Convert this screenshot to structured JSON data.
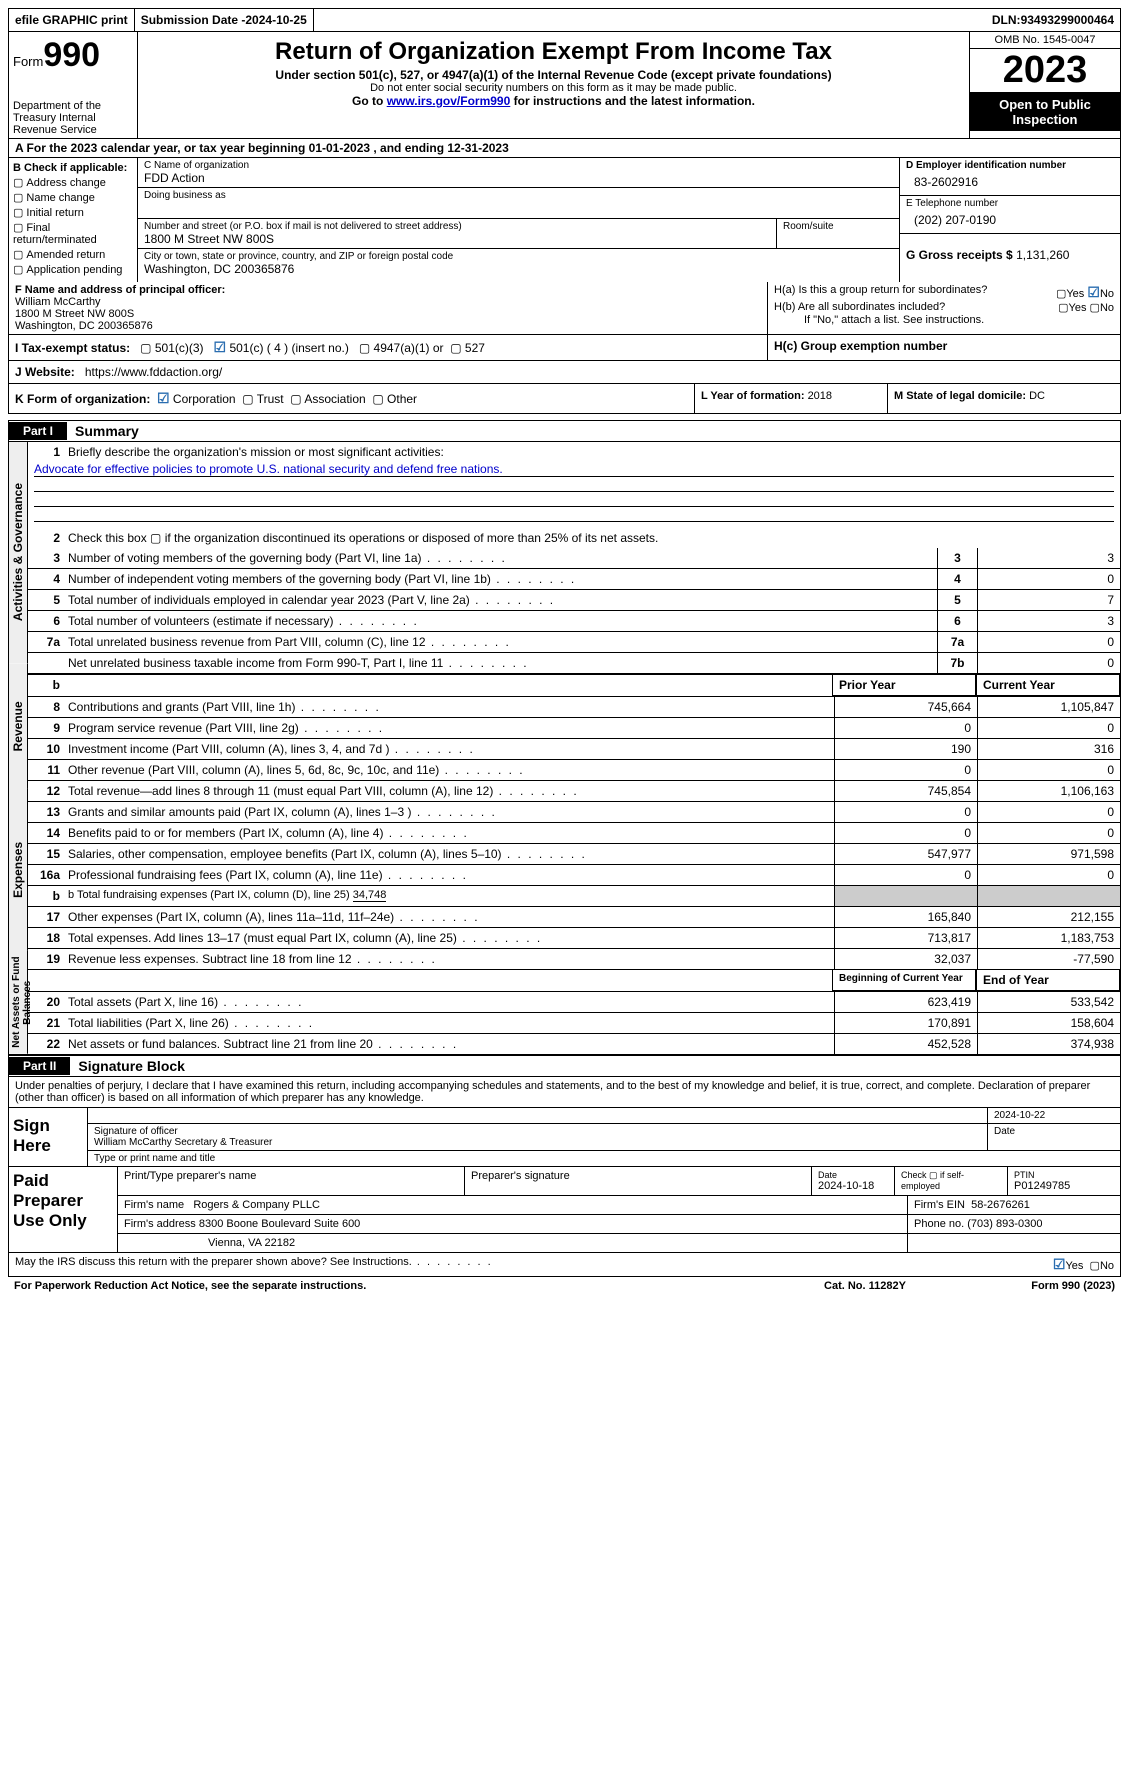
{
  "topbar": {
    "efile": "efile GRAPHIC print",
    "submission_label": "Submission Date - ",
    "submission_date": "2024-10-25",
    "dln_label": "DLN: ",
    "dln": "93493299000464"
  },
  "header": {
    "form_label": "Form",
    "form_num": "990",
    "dept": "Department of the Treasury\nInternal Revenue Service",
    "title": "Return of Organization Exempt From Income Tax",
    "subtitle": "Under section 501(c), 527, or 4947(a)(1) of the Internal Revenue Code (except private foundations)",
    "note1": "Do not enter social security numbers on this form as it may be made public.",
    "note2_pre": "Go to ",
    "note2_link": "www.irs.gov/Form990",
    "note2_post": " for instructions and the latest information.",
    "omb": "OMB No. 1545-0047",
    "year": "2023",
    "inspect": "Open to Public Inspection"
  },
  "rowA": "A  For the 2023 calendar year, or tax year beginning 01-01-2023    , and ending 12-31-2023",
  "colB": {
    "label": "B Check if applicable:",
    "items": [
      "Address change",
      "Name change",
      "Initial return",
      "Final return/terminated",
      "Amended return",
      "Application pending"
    ]
  },
  "colC": {
    "name_lab": "C Name of organization",
    "name": "FDD Action",
    "dba_lab": "Doing business as",
    "addr_lab": "Number and street (or P.O. box if mail is not delivered to street address)",
    "addr": "1800 M Street NW 800S",
    "room_lab": "Room/suite",
    "city_lab": "City or town, state or province, country, and ZIP or foreign postal code",
    "city": "Washington, DC  200365876"
  },
  "colD": {
    "ein_lab": "D Employer identification number",
    "ein": "83-2602916",
    "phone_lab": "E Telephone number",
    "phone": "(202) 207-0190",
    "gross_lab": "G Gross receipts $ ",
    "gross": "1,131,260"
  },
  "rowF": {
    "lab": "F  Name and address of principal officer:",
    "name": "William McCarthy",
    "addr1": "1800 M Street NW 800S",
    "addr2": "Washington, DC  200365876"
  },
  "rowH": {
    "ha": "H(a)  Is this a group return for subordinates?",
    "hb": "H(b)  Are all subordinates included?",
    "hb_note": "If \"No,\" attach a list. See instructions.",
    "hc": "H(c)  Group exemption number",
    "yes": "Yes",
    "no": "No"
  },
  "rowI": {
    "lab": "I   Tax-exempt status:",
    "o1": "501(c)(3)",
    "o2": "501(c) ( 4 ) (insert no.)",
    "o3": "4947(a)(1) or",
    "o4": "527"
  },
  "rowJ": {
    "lab": "J   Website:",
    "val": "https://www.fddaction.org/"
  },
  "rowK": {
    "lab": "K Form of organization:",
    "o1": "Corporation",
    "o2": "Trust",
    "o3": "Association",
    "o4": "Other"
  },
  "rowL": {
    "lab": "L Year of formation: ",
    "val": "2018"
  },
  "rowM": {
    "lab": "M State of legal domicile: ",
    "val": "DC"
  },
  "part1": {
    "label": "Part I",
    "title": "Summary"
  },
  "summary": {
    "vtab1": "Activities & Governance",
    "vtab2": "Revenue",
    "vtab3": "Expenses",
    "vtab4": "Net Assets or Fund Balances",
    "line1_lab": "Briefly describe the organization's mission or most significant activities:",
    "line1_val": "Advocate for effective policies to promote U.S. national security and defend free nations.",
    "line2": "Check this box ▢ if the organization discontinued its operations or disposed of more than 25% of its net assets.",
    "lines_gov": [
      {
        "n": "3",
        "d": "Number of voting members of the governing body (Part VI, line 1a)",
        "col": "3",
        "v": "3"
      },
      {
        "n": "4",
        "d": "Number of independent voting members of the governing body (Part VI, line 1b)",
        "col": "4",
        "v": "0"
      },
      {
        "n": "5",
        "d": "Total number of individuals employed in calendar year 2023 (Part V, line 2a)",
        "col": "5",
        "v": "7"
      },
      {
        "n": "6",
        "d": "Total number of volunteers (estimate if necessary)",
        "col": "6",
        "v": "3"
      },
      {
        "n": "7a",
        "d": "Total unrelated business revenue from Part VIII, column (C), line 12",
        "col": "7a",
        "v": "0"
      },
      {
        "n": "",
        "d": "Net unrelated business taxable income from Form 990-T, Part I, line 11",
        "col": "7b",
        "v": "0"
      }
    ],
    "col_prior": "Prior Year",
    "col_current": "Current Year",
    "lines_rev": [
      {
        "n": "8",
        "d": "Contributions and grants (Part VIII, line 1h)",
        "p": "745,664",
        "c": "1,105,847"
      },
      {
        "n": "9",
        "d": "Program service revenue (Part VIII, line 2g)",
        "p": "0",
        "c": "0"
      },
      {
        "n": "10",
        "d": "Investment income (Part VIII, column (A), lines 3, 4, and 7d )",
        "p": "190",
        "c": "316"
      },
      {
        "n": "11",
        "d": "Other revenue (Part VIII, column (A), lines 5, 6d, 8c, 9c, 10c, and 11e)",
        "p": "0",
        "c": "0"
      },
      {
        "n": "12",
        "d": "Total revenue—add lines 8 through 11 (must equal Part VIII, column (A), line 12)",
        "p": "745,854",
        "c": "1,106,163"
      }
    ],
    "lines_exp": [
      {
        "n": "13",
        "d": "Grants and similar amounts paid (Part IX, column (A), lines 1–3 )",
        "p": "0",
        "c": "0"
      },
      {
        "n": "14",
        "d": "Benefits paid to or for members (Part IX, column (A), line 4)",
        "p": "0",
        "c": "0"
      },
      {
        "n": "15",
        "d": "Salaries, other compensation, employee benefits (Part IX, column (A), lines 5–10)",
        "p": "547,977",
        "c": "971,598"
      },
      {
        "n": "16a",
        "d": "Professional fundraising fees (Part IX, column (A), line 11e)",
        "p": "0",
        "c": "0"
      }
    ],
    "line16b_lab": "b  Total fundraising expenses (Part IX, column (D), line 25) ",
    "line16b_val": "34,748",
    "lines_exp2": [
      {
        "n": "17",
        "d": "Other expenses (Part IX, column (A), lines 11a–11d, 11f–24e)",
        "p": "165,840",
        "c": "212,155"
      },
      {
        "n": "18",
        "d": "Total expenses. Add lines 13–17 (must equal Part IX, column (A), line 25)",
        "p": "713,817",
        "c": "1,183,753"
      },
      {
        "n": "19",
        "d": "Revenue less expenses. Subtract line 18 from line 12",
        "p": "32,037",
        "c": "-77,590"
      }
    ],
    "col_beg": "Beginning of Current Year",
    "col_end": "End of Year",
    "lines_net": [
      {
        "n": "20",
        "d": "Total assets (Part X, line 16)",
        "p": "623,419",
        "c": "533,542"
      },
      {
        "n": "21",
        "d": "Total liabilities (Part X, line 26)",
        "p": "170,891",
        "c": "158,604"
      },
      {
        "n": "22",
        "d": "Net assets or fund balances. Subtract line 21 from line 20",
        "p": "452,528",
        "c": "374,938"
      }
    ]
  },
  "part2": {
    "label": "Part II",
    "title": "Signature Block"
  },
  "sig_decl": "Under penalties of perjury, I declare that I have examined this return, including accompanying schedules and statements, and to the best of my knowledge and belief, it is true, correct, and complete. Declaration of preparer (other than officer) is based on all information of which preparer has any knowledge.",
  "sign": {
    "here": "Sign Here",
    "date": "2024-10-22",
    "sig_lab": "Signature of officer",
    "date_lab": "Date",
    "name": "William McCarthy  Secretary & Treasurer",
    "name_lab": "Type or print name and title"
  },
  "paid": {
    "lab": "Paid Preparer Use Only",
    "h1": "Print/Type preparer's name",
    "h2": "Preparer's signature",
    "h3": "Date",
    "h3v": "2024-10-18",
    "h4_lab": "Check ▢ if self-employed",
    "h5_lab": "PTIN",
    "h5v": "P01249785",
    "firm_lab": "Firm's name",
    "firm": "Rogers & Company PLLC",
    "ein_lab": "Firm's EIN",
    "ein": "58-2676261",
    "addr_lab": "Firm's address",
    "addr1": "8300 Boone Boulevard Suite 600",
    "addr2": "Vienna, VA  22182",
    "ph_lab": "Phone no.",
    "ph": "(703) 893-0300"
  },
  "discuss": {
    "q": "May the IRS discuss this return with the preparer shown above? See Instructions.",
    "yes": "Yes",
    "no": "No"
  },
  "footer": {
    "left": "For Paperwork Reduction Act Notice, see the separate instructions.",
    "mid": "Cat. No. 11282Y",
    "right_pre": "Form ",
    "right_form": "990",
    "right_post": " (2023)"
  }
}
